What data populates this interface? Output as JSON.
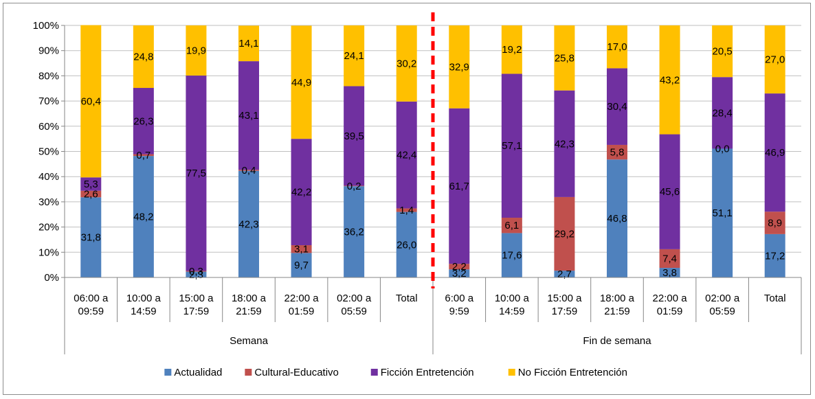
{
  "chart_data": {
    "type": "bar",
    "stacked": "percent",
    "ylim": [
      0,
      100
    ],
    "yticks": [
      "0%",
      "10%",
      "20%",
      "30%",
      "40%",
      "50%",
      "60%",
      "70%",
      "80%",
      "90%",
      "100%"
    ],
    "groups": [
      {
        "name": "Semana",
        "categories": [
          "06:00 a\n09:59",
          "10:00 a\n14:59",
          "15:00 a\n17:59",
          "18:00 a\n21:59",
          "22:00 a\n01:59",
          "02:00 a\n05:59",
          "Total"
        ]
      },
      {
        "name": "Fin de semana",
        "categories": [
          "6:00 a\n9:59",
          "10:00 a\n14:59",
          "15:00 a\n17:59",
          "18:00 a\n21:59",
          "22:00 a\n01:59",
          "02:00 a\n05:59",
          "Total"
        ]
      }
    ],
    "series": [
      {
        "name": "Actualidad",
        "color": "#4F81BD",
        "values": [
          31.8,
          48.2,
          2.3,
          42.3,
          9.7,
          36.2,
          26.0,
          3.2,
          17.6,
          2.7,
          46.8,
          3.8,
          51.1,
          17.2
        ],
        "labels": [
          "31,8",
          "48,2",
          "2,3",
          "42,3",
          "9,7",
          "36,2",
          "26,0",
          "3,2",
          "17,6",
          "2,7",
          "46,8",
          "3,8",
          "51,1",
          "17,2"
        ]
      },
      {
        "name": "Cultural-Educativo",
        "color": "#C0504D",
        "values": [
          2.6,
          0.7,
          0.3,
          0.4,
          3.1,
          0.2,
          1.4,
          2.2,
          6.1,
          29.2,
          5.8,
          7.4,
          0.0,
          8.9
        ],
        "labels": [
          "2,6",
          "0,7",
          "0,3",
          "0,4",
          "3,1",
          "0,2",
          "1,4",
          "2,2",
          "6,1",
          "29,2",
          "5,8",
          "7,4",
          "0,0",
          "8,9"
        ]
      },
      {
        "name": "Ficción Entretención",
        "color": "#7030A0",
        "values": [
          5.3,
          26.3,
          77.5,
          43.1,
          42.2,
          39.5,
          42.4,
          61.7,
          57.1,
          42.3,
          30.4,
          45.6,
          28.4,
          46.9
        ],
        "labels": [
          "5,3",
          "26,3",
          "77,5",
          "43,1",
          "42,2",
          "39,5",
          "42,4",
          "61,7",
          "57,1",
          "42,3",
          "30,4",
          "45,6",
          "28,4",
          "46,9"
        ]
      },
      {
        "name": "No Ficción Entretención",
        "color": "#FFC000",
        "values": [
          60.4,
          24.8,
          19.9,
          14.1,
          44.9,
          24.1,
          30.2,
          32.9,
          19.2,
          25.8,
          17.0,
          43.2,
          20.5,
          27.0
        ],
        "labels": [
          "60,4",
          "24,8",
          "19,9",
          "14,1",
          "44,9",
          "24,1",
          "30,2",
          "32,9",
          "19,2",
          "25,8",
          "17,0",
          "43,2",
          "20,5",
          "27,0"
        ]
      }
    ],
    "divider": {
      "style": "dashed",
      "color": "#FF0000",
      "between_groups": true
    },
    "grid": true,
    "legend": "bottom"
  }
}
